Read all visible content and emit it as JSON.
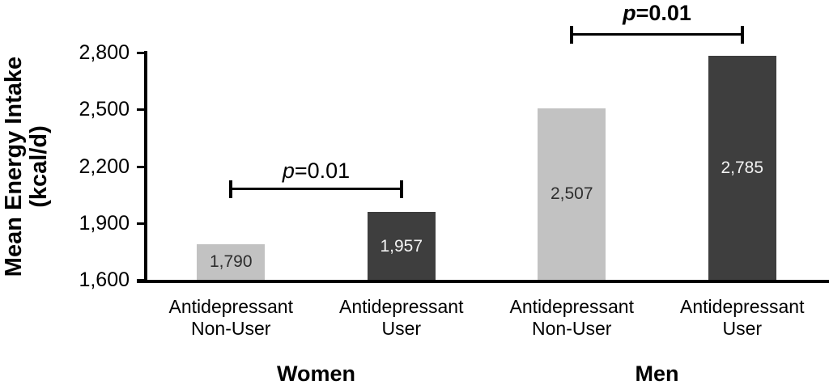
{
  "figure": {
    "background": "#ffffff",
    "axis_color": "#000000"
  },
  "chart_data": {
    "type": "bar",
    "title": "",
    "ylabel_lines": [
      "Mean Energy Intake",
      "(kcal/d)"
    ],
    "xlabel": "",
    "ylim": [
      1600,
      2800
    ],
    "grid": false,
    "legend": "none",
    "yticks": [
      {
        "value": 1600,
        "label": "1,600"
      },
      {
        "value": 1900,
        "label": "1,900"
      },
      {
        "value": 2200,
        "label": "2,200"
      },
      {
        "value": 2500,
        "label": "2,500"
      },
      {
        "value": 2800,
        "label": "2,800"
      }
    ],
    "bar_colors": {
      "non_user": "#c2c2c2",
      "user": "#3e3e3e"
    },
    "groups": [
      {
        "label": "Women",
        "bars": [
          {
            "category_lines": [
              "Antidepressant",
              "Non-User"
            ],
            "value": 1790,
            "value_label": "1,790",
            "color": "#c2c2c2",
            "value_label_color": "#2e2e2e"
          },
          {
            "category_lines": [
              "Antidepressant",
              "User"
            ],
            "value": 1957,
            "value_label": "1,957",
            "color": "#3e3e3e",
            "value_label_color": "#f2f2f2"
          }
        ],
        "annotation": {
          "p_symbol": "p",
          "p_rest": "=0.01",
          "bold": false
        }
      },
      {
        "label": "Men",
        "bars": [
          {
            "category_lines": [
              "Antidepressant",
              "Non-User"
            ],
            "value": 2507,
            "value_label": "2,507",
            "color": "#c2c2c2",
            "value_label_color": "#2e2e2e"
          },
          {
            "category_lines": [
              "Antidepressant",
              "User"
            ],
            "value": 2785,
            "value_label": "2,785",
            "color": "#3e3e3e",
            "value_label_color": "#f2f2f2"
          }
        ],
        "annotation": {
          "p_symbol": "p",
          "p_rest": "=0.01",
          "bold": true
        }
      }
    ]
  }
}
